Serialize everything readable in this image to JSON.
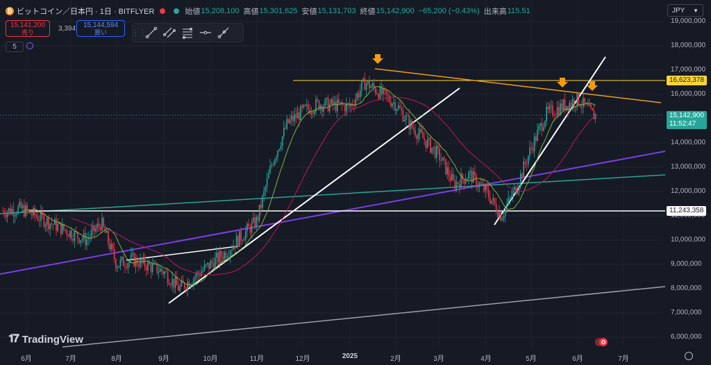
{
  "header": {
    "title": "ビットコイン／日本円 · 1日 · BITFLYER",
    "open_label": "始値",
    "open": "15,208,100",
    "high_label": "高値",
    "high": "15,301,625",
    "low_label": "安値",
    "low": "15,131,703",
    "close_label": "終値",
    "close": "15,142,900",
    "change": "−65,200 (−0.43%)",
    "volume_label": "出来高",
    "volume": "115.51"
  },
  "sell": {
    "price": "15,141,200",
    "label": "売り"
  },
  "buy": {
    "price": "15,144,594",
    "label": "買い"
  },
  "spread": "3,394",
  "indicator_count": "5",
  "currency": "JPY",
  "price_labels": {
    "resistance": "16,623,378",
    "current": "15,142,900",
    "countdown": "11:52:47",
    "support": "11,243,358"
  },
  "logo": "TradingView",
  "colors": {
    "background": "#161a25",
    "up": "#26a69a",
    "down": "#f23645",
    "ma_short": "#7cb342",
    "ma_long": "#c2185b",
    "resistance": "#fcd535",
    "downtrend": "#f39c12",
    "channel_purple": "#7b3fe4",
    "channel_teal": "#26a69a"
  },
  "chart_data": {
    "type": "candlestick",
    "title": "ビットコイン／日本円 · 1日 · BITFLYER",
    "y_unit": "JPY",
    "ylim": [
      5700000,
      19300000
    ],
    "yticks": [
      "19,000,000",
      "18,000,000",
      "17,000,000",
      "16,000,000",
      "15,000,000",
      "14,000,000",
      "13,000,000",
      "12,000,000",
      "11,000,000",
      "10,000,000",
      "9,000,000",
      "8,000,000",
      "7,000,000",
      "6,000,000"
    ],
    "xticks": [
      "6月",
      "7月",
      "8月",
      "9月",
      "10月",
      "11月",
      "12月",
      "2025",
      "2月",
      "3月",
      "4月",
      "5月",
      "6月",
      "7月"
    ],
    "close_path_anchors": [
      [
        "6月",
        11200000
      ],
      [
        "6月",
        11300000
      ],
      [
        "7月",
        10300000
      ],
      [
        "7月",
        10000000
      ],
      [
        "7月",
        10700000
      ],
      [
        "8月",
        9000000
      ],
      [
        "8月",
        9200000
      ],
      [
        "9月",
        8700000
      ],
      [
        "9月",
        8000000
      ],
      [
        "10月",
        9000000
      ],
      [
        "10月",
        9500000
      ],
      [
        "11月",
        10800000
      ],
      [
        "11月",
        13200000
      ],
      [
        "11月",
        14800000
      ],
      [
        "12月",
        15300000
      ],
      [
        "12月",
        15600000
      ],
      [
        "2025",
        15500000
      ],
      [
        "2025",
        16500000
      ],
      [
        "2月",
        15600000
      ],
      [
        "2月",
        14700000
      ],
      [
        "3月",
        13500000
      ],
      [
        "3月",
        12300000
      ],
      [
        "3月",
        12700000
      ],
      [
        "4月",
        12000000
      ],
      [
        "4月",
        11000000
      ],
      [
        "4月",
        12200000
      ],
      [
        "5月",
        13800000
      ],
      [
        "5月",
        15200000
      ],
      [
        "6月",
        15800000
      ],
      [
        "6月",
        15142900
      ]
    ],
    "horizontal_levels": [
      {
        "value": 16623378,
        "color": "yellow"
      },
      {
        "value": 11243358,
        "color": "white"
      }
    ]
  }
}
